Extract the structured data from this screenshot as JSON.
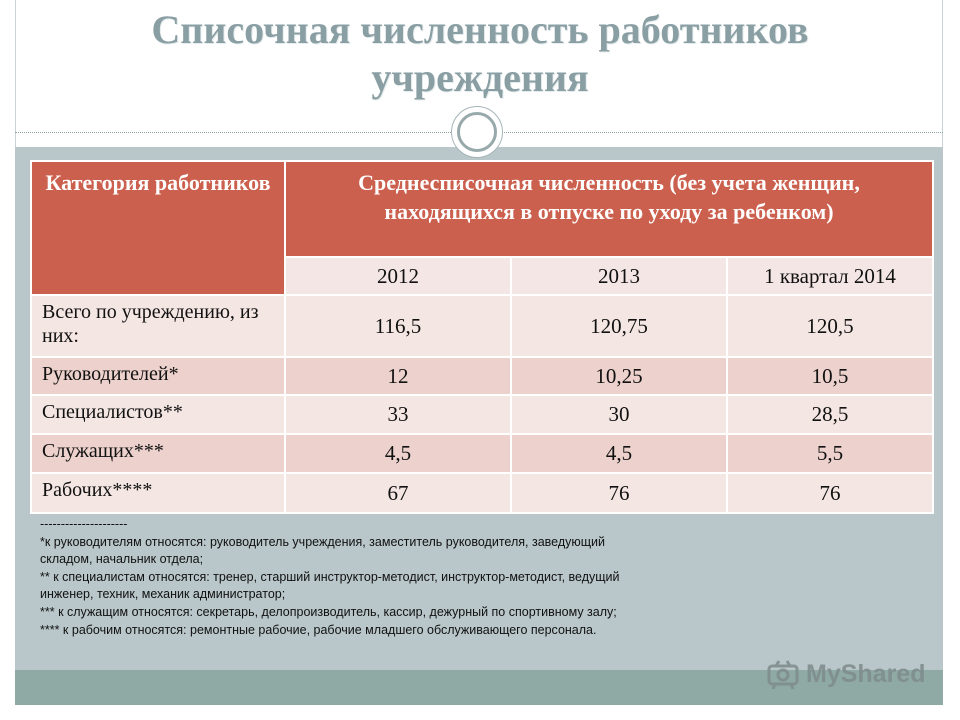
{
  "title": "Списочная численность работников учреждения",
  "table": {
    "category_header": "Категория работников",
    "main_header": "Среднесписочная численность (без учета женщин, находящихся в отпуске по уходу за ребенком)",
    "years": [
      "2012",
      "2013",
      "1 квартал 2014"
    ],
    "rows": [
      {
        "category": "Всего по учреждению, из них:",
        "values": [
          "116,5",
          "120,75",
          "120,5"
        ]
      },
      {
        "category": "Руководителей*",
        "values": [
          "12",
          "10,25",
          "10,5"
        ]
      },
      {
        "category": "Специалистов**",
        "values": [
          "33",
          "30",
          "28,5"
        ]
      },
      {
        "category": "Служащих***",
        "values": [
          "4,5",
          "4,5",
          "5,5"
        ]
      },
      {
        "category": "Рабочих****",
        "values": [
          "67",
          "76",
          "76"
        ]
      }
    ]
  },
  "notes": [
    "---------------------",
    "*к руководителям относятся: руководитель учреждения, заместитель руководителя, заведующий складом, начальник отдела;",
    "** к специалистам относятся: тренер, старший инструктор-методист, инструктор-методист, ведущий инженер, техник, механик администратор;",
    "*** к служащим относятся: секретарь, делопроизводитель, кассир, дежурный по спортивному залу;",
    "**** к рабочим относятся: ремонтные рабочие, рабочие младшего обслуживающего персонала."
  ],
  "watermark": {
    "text": "MyShared",
    "icon": "projector-icon"
  }
}
